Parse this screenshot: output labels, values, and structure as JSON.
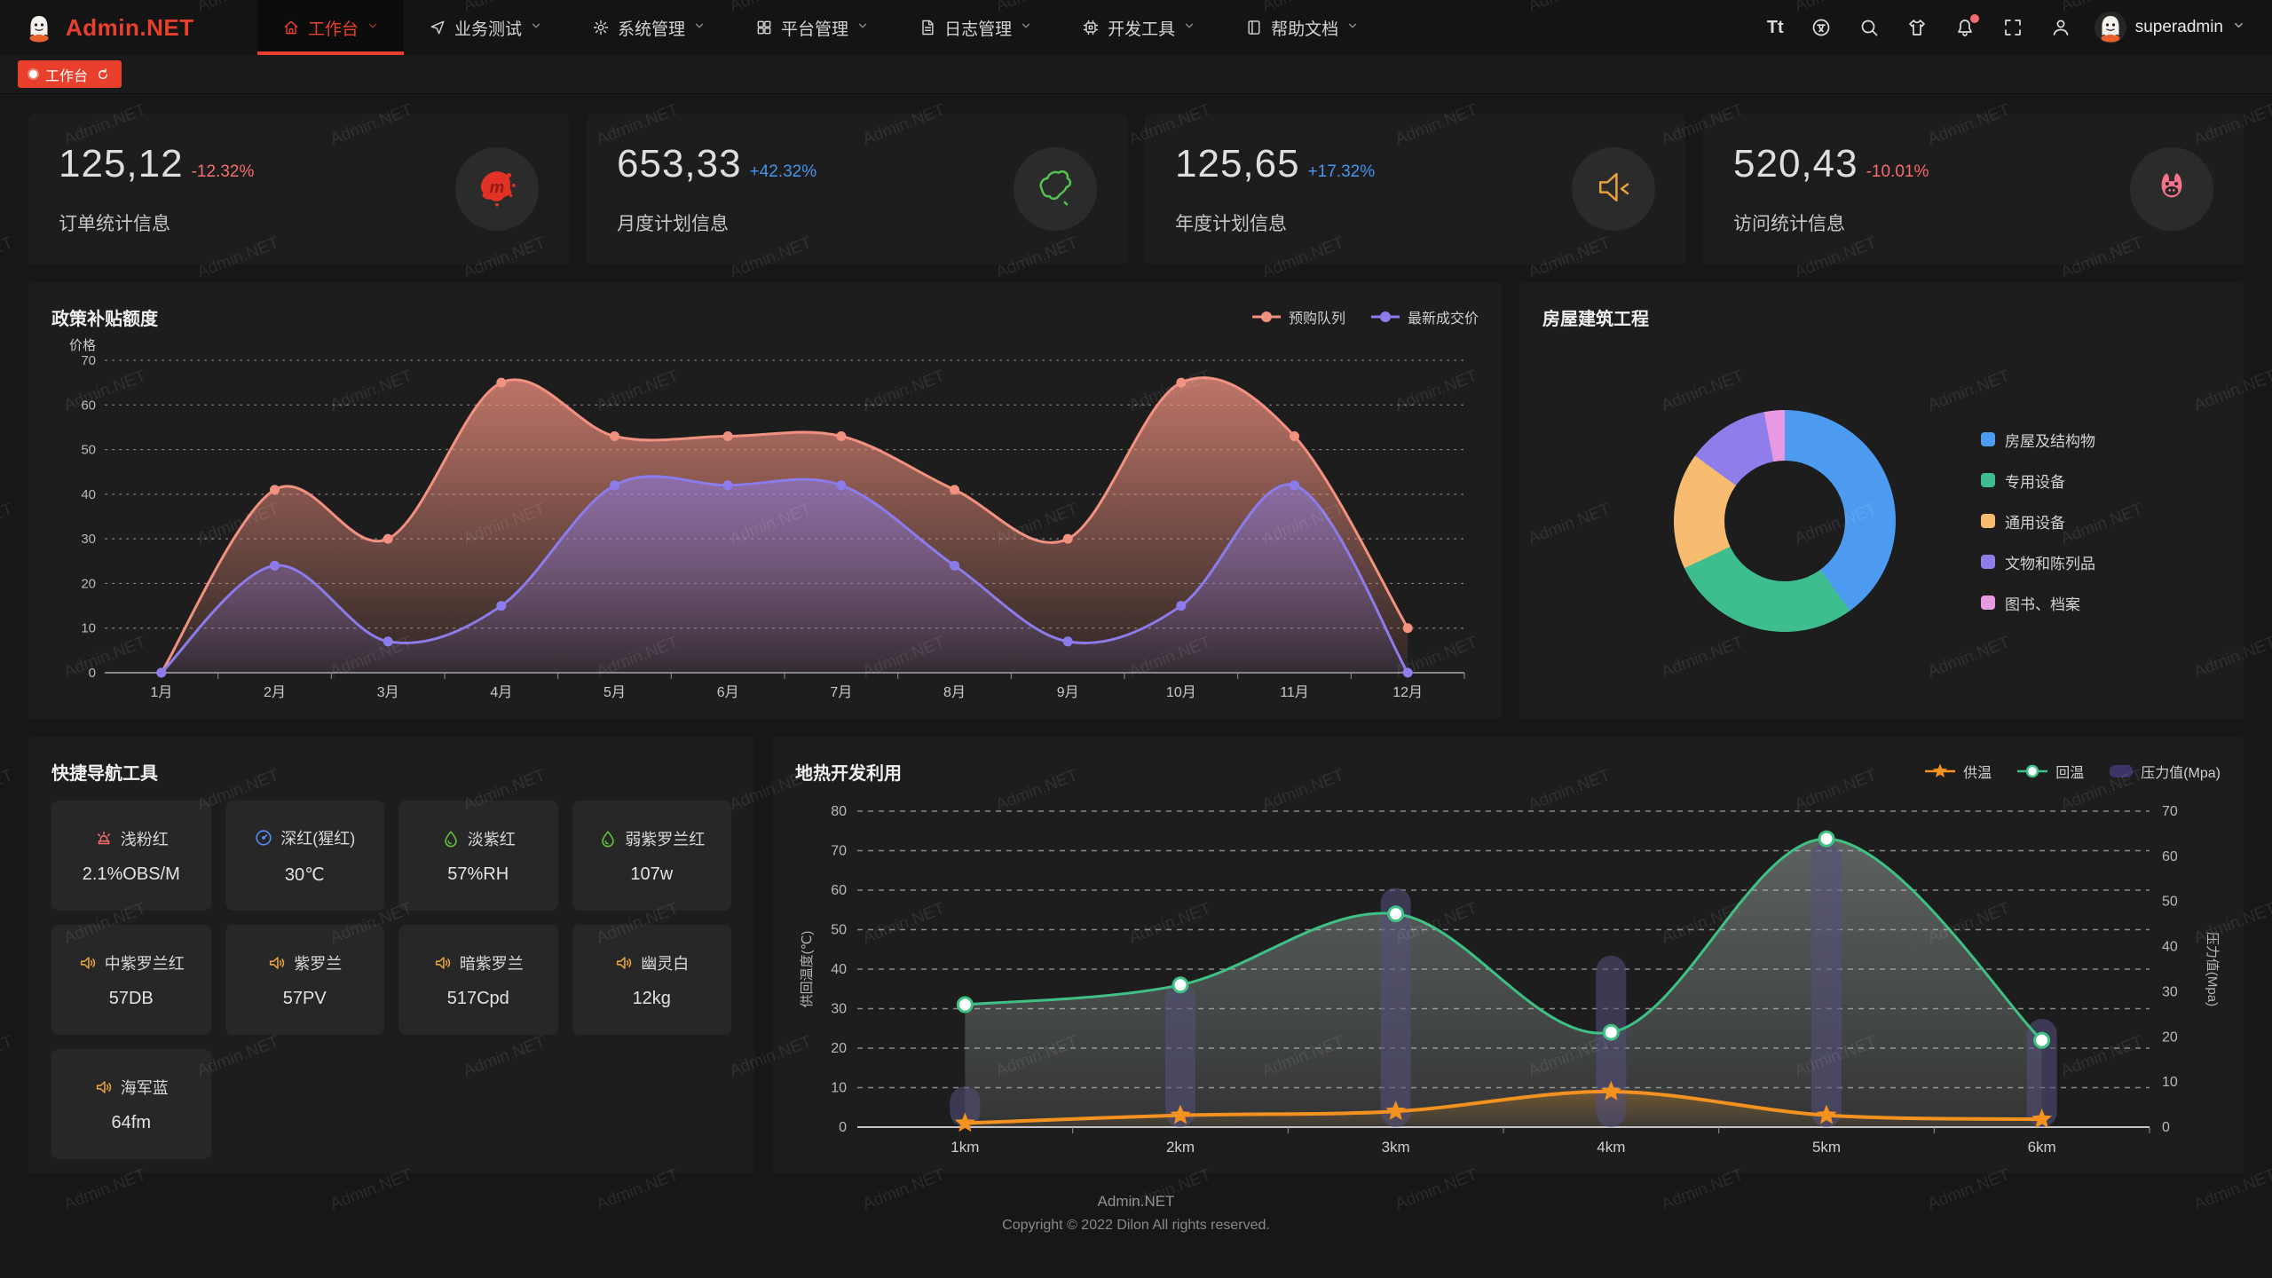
{
  "watermark": {
    "text": "Admin.NET"
  },
  "header": {
    "logo_text": "Admin.NET",
    "menu": [
      {
        "label": "工作台",
        "icon": "home-icon",
        "active": true
      },
      {
        "label": "业务测试",
        "icon": "send-icon",
        "active": false
      },
      {
        "label": "系统管理",
        "icon": "gear-icon",
        "active": false
      },
      {
        "label": "平台管理",
        "icon": "grid-icon",
        "active": false
      },
      {
        "label": "日志管理",
        "icon": "file-icon",
        "active": false
      },
      {
        "label": "开发工具",
        "icon": "cpu-icon",
        "active": false
      },
      {
        "label": "帮助文档",
        "icon": "book-icon",
        "active": false
      }
    ],
    "toolbar": [
      {
        "name": "font-size-icon",
        "glyph": "Tt"
      },
      {
        "name": "language-icon"
      },
      {
        "name": "search-icon"
      },
      {
        "name": "theme-icon"
      },
      {
        "name": "bell-icon",
        "badge": true
      },
      {
        "name": "fullscreen-icon"
      },
      {
        "name": "profile-icon"
      }
    ],
    "username": "superadmin"
  },
  "tabbar": {
    "active_tab": "工作台"
  },
  "stats": [
    {
      "value": "125,12",
      "delta": "-12.32%",
      "trend": "down",
      "label": "订单统计信息",
      "icon": "meetup-icon"
    },
    {
      "value": "653,33",
      "delta": "+42.32%",
      "trend": "up",
      "label": "月度计划信息",
      "icon": "china-map-icon"
    },
    {
      "value": "125,65",
      "delta": "+17.32%",
      "trend": "up",
      "label": "年度计划信息",
      "icon": "speaker-orange-icon"
    },
    {
      "value": "520,43",
      "delta": "-10.01%",
      "trend": "down",
      "label": "访问统计信息",
      "icon": "cat-icon"
    }
  ],
  "quick_nav": {
    "title": "快捷导航工具",
    "items": [
      {
        "icon": "alarm-icon",
        "label": "浅粉红",
        "value": "2.1%OBS/M"
      },
      {
        "icon": "gauge-icon",
        "label": "深红(猩红)",
        "value": "30℃"
      },
      {
        "icon": "drop-icon",
        "label": "淡紫红",
        "value": "57%RH"
      },
      {
        "icon": "drop-icon",
        "label": "弱紫罗兰红",
        "value": "107w"
      },
      {
        "icon": "speaker-icon",
        "label": "中紫罗兰红",
        "value": "57DB"
      },
      {
        "icon": "speaker-icon",
        "label": "紫罗兰",
        "value": "57PV"
      },
      {
        "icon": "speaker-icon",
        "label": "暗紫罗兰",
        "value": "517Cpd"
      },
      {
        "icon": "speaker-icon",
        "label": "幽灵白",
        "value": "12kg"
      },
      {
        "icon": "speaker-icon",
        "label": "海军蓝",
        "value": "64fm"
      }
    ]
  },
  "footer": {
    "line1": "Admin.NET",
    "line2": "Copyright © 2022 Dilon All rights reserved."
  },
  "colors": {
    "accent": "#E8402C",
    "delta_down": "#F56C6C",
    "delta_up": "#4595EE"
  },
  "chart_data": [
    {
      "id": "subsidy",
      "type": "line",
      "title": "政策补贴额度",
      "ylabel": "价格",
      "ylim": [
        0,
        70
      ],
      "ytick_step": 10,
      "grid": true,
      "legend_position": "top-right",
      "categories": [
        "1月",
        "2月",
        "3月",
        "4月",
        "5月",
        "6月",
        "7月",
        "8月",
        "9月",
        "10月",
        "11月",
        "12月"
      ],
      "series": [
        {
          "name": "预购队列",
          "color": "#F29180",
          "values": [
            0,
            41,
            30,
            65,
            53,
            53,
            53,
            41,
            30,
            65,
            53,
            10
          ]
        },
        {
          "name": "最新成交价",
          "color": "#8C7CEB",
          "values": [
            0,
            24,
            7,
            15,
            42,
            42,
            42,
            24,
            7,
            15,
            42,
            0
          ]
        }
      ]
    },
    {
      "id": "building",
      "type": "pie",
      "title": "房屋建筑工程",
      "donut": true,
      "legend_position": "right",
      "labels": [
        "房屋及结构物",
        "专用设备",
        "通用设备",
        "文物和陈列品",
        "图书、档案"
      ],
      "values": [
        40,
        28,
        17,
        12,
        3
      ],
      "colors": [
        "#4D9BF1",
        "#3EBE8F",
        "#F8BC70",
        "#8F7DE9",
        "#E79AE2"
      ]
    },
    {
      "id": "geothermal",
      "type": "line+bar",
      "title": "地热开发利用",
      "categories": [
        "1km",
        "2km",
        "3km",
        "4km",
        "5km",
        "6km"
      ],
      "ylabel_left": "供回温度(℃)",
      "ylabel_right": "压力值(Mpa)",
      "ylim_left": [
        0,
        80
      ],
      "ylim_right": [
        0,
        70
      ],
      "ytick_step": 10,
      "grid": true,
      "legend_position": "top-right",
      "series": [
        {
          "name": "供温",
          "type": "line",
          "axis": "left",
          "marker": "star",
          "color": "#F5921F",
          "values": [
            1,
            3,
            4,
            9,
            3,
            2
          ]
        },
        {
          "name": "回温",
          "type": "line",
          "axis": "left",
          "marker": "circle",
          "color": "#3FC184",
          "values": [
            31,
            36,
            54,
            24,
            73,
            22
          ]
        },
        {
          "name": "压力值(Mpa)",
          "type": "bar",
          "axis": "right",
          "color": "#55517E",
          "values": [
            9,
            32,
            53,
            38,
            63,
            24
          ]
        }
      ]
    }
  ]
}
